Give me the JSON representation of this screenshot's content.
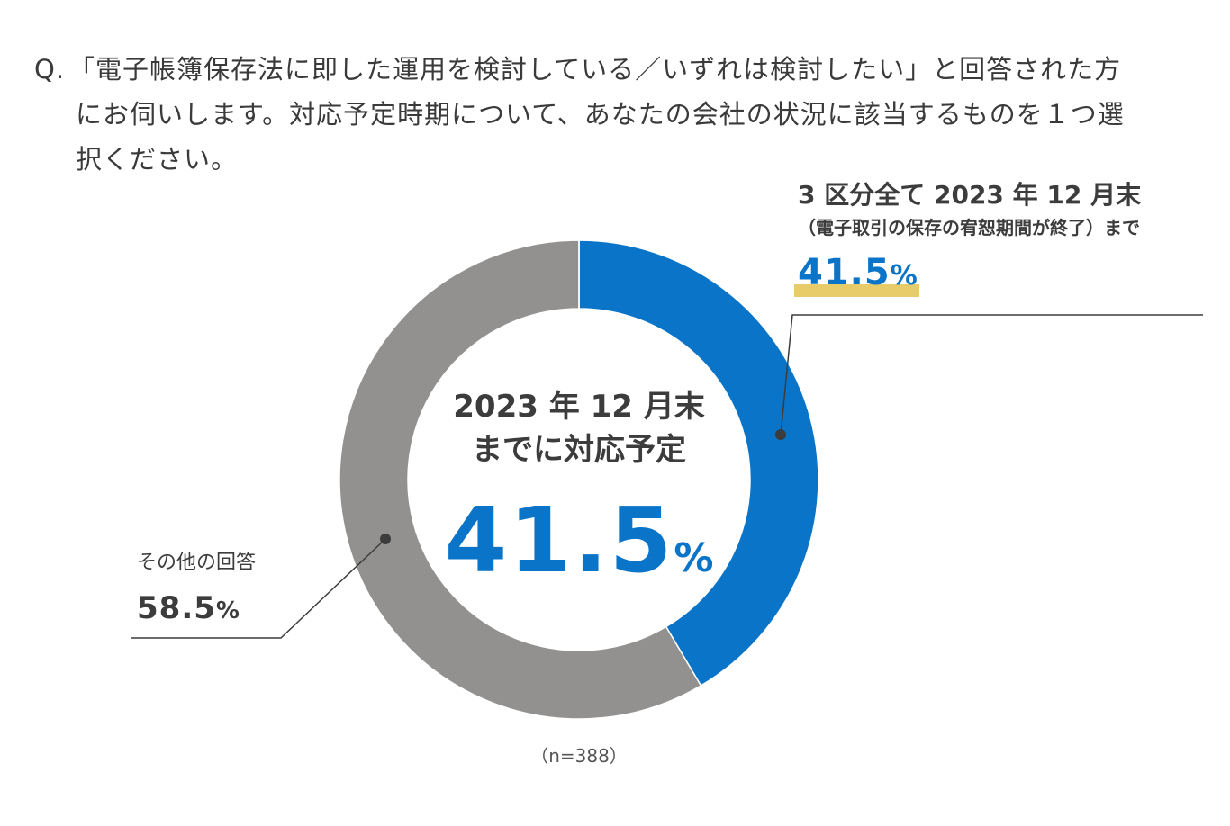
{
  "question": {
    "prefix": "Q.",
    "line1": "「電子帳簿保存法に即した運用を検討している／いずれは検討したい」と回答された方",
    "line2": "にお伺いします。対応予定時期について、あなたの会社の状況に該当するものを１つ選",
    "line3": "択ください。"
  },
  "center_label": {
    "line1": "2023 年 12 月末",
    "line2": "までに対応予定",
    "value": "41.5",
    "unit": "%"
  },
  "callout_right": {
    "line1": "3 区分全て 2023 年 12 月末",
    "line2": "（電子取引の保存の宥恕期間が終了）まで",
    "value": "41.5",
    "unit": "%"
  },
  "callout_left": {
    "line1": "その他の回答",
    "value": "58.5",
    "unit": "%"
  },
  "sample_size": "（n=388）",
  "colors": {
    "accent": "#0a74c8",
    "other": "#929190",
    "highlight": "#e9cc6a",
    "leader": "#3c3c3c"
  },
  "chart_data": {
    "type": "pie",
    "donut": true,
    "title": "2023 年 12 月末までに対応予定",
    "categories": [
      "3 区分全て 2023 年 12 月末（電子取引の保存の宥恕期間が終了）まで",
      "その他の回答"
    ],
    "values": [
      41.5,
      58.5
    ],
    "unit": "%",
    "n": 388,
    "start": "top",
    "direction": "clockwise"
  }
}
